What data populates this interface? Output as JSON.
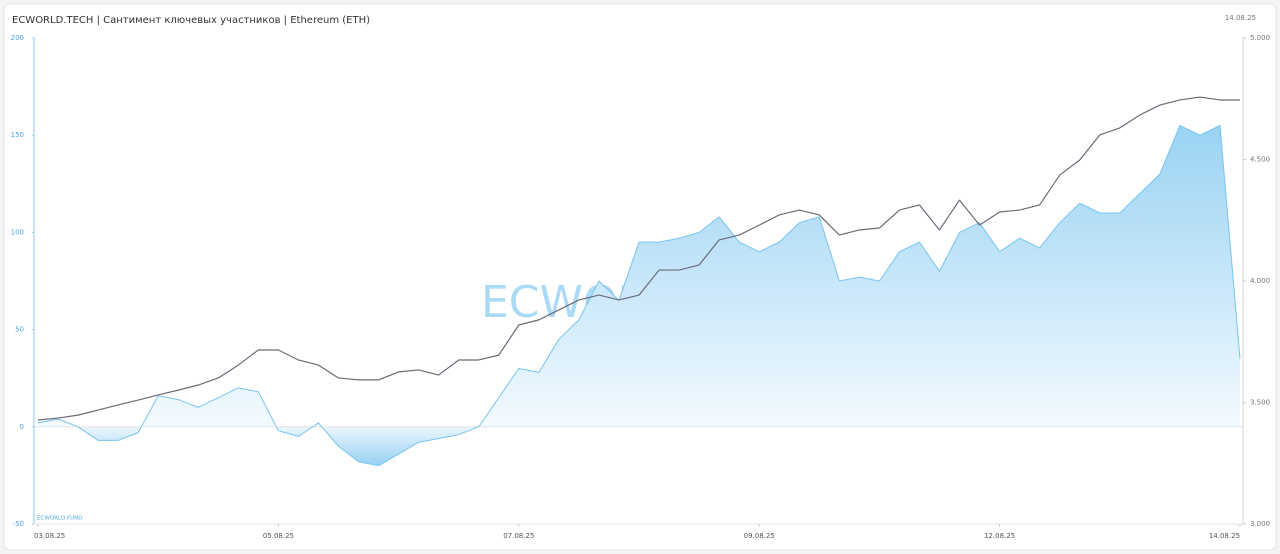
{
  "chart_data": {
    "type": "line",
    "title": "ECWORLD.TECH | Сантимент ключевых участников | Ethereum (ETH)",
    "date": "14.08.25",
    "source": "ECWORLD.FUND",
    "watermark": "ECWORLD.TECH",
    "categories": [
      "03.08.25",
      null,
      null,
      null,
      null,
      null,
      null,
      null,
      null,
      null,
      null,
      null,
      "05.08.25",
      null,
      null,
      null,
      null,
      null,
      null,
      null,
      null,
      null,
      null,
      null,
      "07.08.25",
      null,
      null,
      null,
      null,
      null,
      null,
      null,
      null,
      null,
      null,
      null,
      "09.08.25",
      null,
      null,
      null,
      null,
      null,
      null,
      null,
      null,
      null,
      null,
      null,
      "12.08.25",
      null,
      null,
      null,
      null,
      null,
      null,
      null,
      null,
      null,
      null,
      null,
      "14.08.25"
    ],
    "series": [
      {
        "name": "Сантимент",
        "color": "#79c4ee",
        "area": true,
        "values": [
          2,
          4,
          0,
          -7,
          -7,
          -3,
          16,
          14,
          10,
          15,
          20,
          18,
          -2,
          -5,
          2,
          -10,
          -18,
          -20,
          -14,
          -8,
          -6,
          -4,
          0,
          15,
          30,
          28,
          45,
          55,
          75,
          65,
          95,
          95,
          97,
          100,
          108,
          95,
          90,
          95,
          105,
          108,
          75,
          77,
          75,
          90,
          95,
          80,
          100,
          105,
          90,
          97,
          92,
          105,
          115,
          110,
          110,
          120,
          130,
          155,
          150,
          155,
          35
        ]
      },
      {
        "name": "Ethereum (ETH)",
        "color": "#6b6b78",
        "axis": "y2",
        "values": [
          3428,
          3436,
          3448,
          3469,
          3490,
          3510,
          3531,
          3551,
          3572,
          3601,
          3654,
          3716,
          3716,
          3675,
          3654,
          3601,
          3593,
          3593,
          3626,
          3634,
          3613,
          3675,
          3675,
          3695,
          3819,
          3840,
          3881,
          3922,
          3942,
          3922,
          3942,
          4045,
          4045,
          4066,
          4169,
          4189,
          4230,
          4272,
          4292,
          4272,
          4189,
          4210,
          4218,
          4292,
          4313,
          4210,
          4333,
          4230,
          4284,
          4292,
          4313,
          4436,
          4498,
          4601,
          4630,
          4683,
          4724,
          4745,
          4757,
          4745,
          4745
        ]
      }
    ],
    "ylim": [
      -50,
      200
    ],
    "yticks": [
      -50,
      0,
      50,
      100,
      150,
      200
    ],
    "y2lim": [
      3000,
      5000
    ],
    "y2ticks": [
      {
        "value": 3000,
        "label": "3.000"
      },
      {
        "value": 3500,
        "label": "3.500"
      },
      {
        "value": 4000,
        "label": "4.000"
      },
      {
        "value": 4500,
        "label": "4.500"
      },
      {
        "value": 5000,
        "label": "5.000"
      }
    ]
  }
}
